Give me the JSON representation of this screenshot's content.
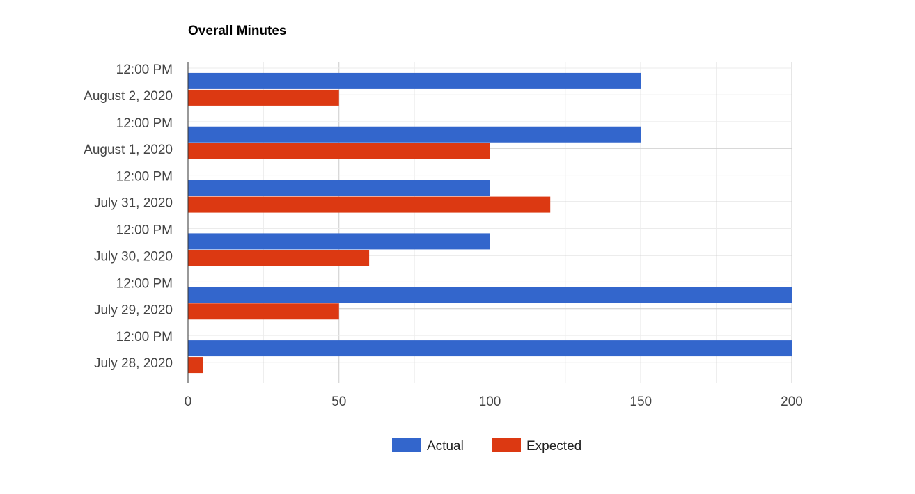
{
  "chart_data": {
    "type": "bar",
    "orientation": "horizontal",
    "title": "Overall Minutes",
    "categories": [
      {
        "time": "12:00 PM",
        "date": "August 2, 2020"
      },
      {
        "time": "12:00 PM",
        "date": "August 1, 2020"
      },
      {
        "time": "12:00 PM",
        "date": "July 31, 2020"
      },
      {
        "time": "12:00 PM",
        "date": "July 30, 2020"
      },
      {
        "time": "12:00 PM",
        "date": "July 29, 2020"
      },
      {
        "time": "12:00 PM",
        "date": "July 28, 2020"
      }
    ],
    "series": [
      {
        "name": "Actual",
        "color": "#3366cc",
        "values": [
          150,
          150,
          100,
          100,
          200,
          200
        ]
      },
      {
        "name": "Expected",
        "color": "#dc3912",
        "values": [
          50,
          100,
          120,
          60,
          50,
          5
        ]
      }
    ],
    "xlim": [
      0,
      200
    ],
    "xticks": [
      0,
      50,
      100,
      150,
      200
    ],
    "xtick_labels": [
      "0",
      "50",
      "100",
      "150",
      "200"
    ],
    "grid": true,
    "legend_position": "bottom"
  }
}
